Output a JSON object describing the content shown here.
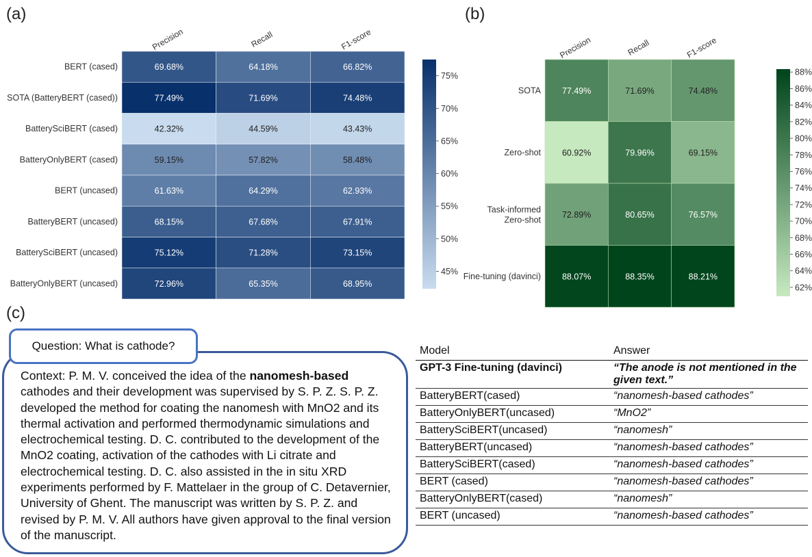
{
  "panels": {
    "a": "(a)",
    "b": "(b)",
    "c": "(c)"
  },
  "chart_data": [
    {
      "type": "heatmap",
      "columns": [
        "Precision",
        "Recall",
        "F1-score"
      ],
      "rows": [
        "BERT (cased)",
        "SOTA (BatteryBERT (cased))",
        "BatterySciBERT (cased)",
        "BatteryOnlyBERT (cased)",
        "BERT (uncased)",
        "BatteryBERT (uncased)",
        "BatterySciBERT (uncased)",
        "BatteryOnlyBERT (uncased)"
      ],
      "values": [
        [
          69.68,
          64.18,
          66.82
        ],
        [
          77.49,
          71.69,
          74.48
        ],
        [
          42.32,
          44.59,
          43.43
        ],
        [
          59.15,
          57.82,
          58.48
        ],
        [
          61.63,
          64.29,
          62.93
        ],
        [
          68.15,
          67.68,
          67.91
        ],
        [
          75.12,
          71.28,
          73.15
        ],
        [
          72.96,
          65.35,
          68.95
        ]
      ],
      "labels": [
        [
          "69.68%",
          "64.18%",
          "66.82%"
        ],
        [
          "77.49%",
          "71.69%",
          "74.48%"
        ],
        [
          "42.32%",
          "44.59%",
          "43.43%"
        ],
        [
          "59.15%",
          "57.82%",
          "58.48%"
        ],
        [
          "61.63%",
          "64.29%",
          "62.93%"
        ],
        [
          "68.15%",
          "67.68%",
          "67.91%"
        ],
        [
          "75.12%",
          "71.28%",
          "73.15%"
        ],
        [
          "72.96%",
          "65.35%",
          "68.95%"
        ]
      ],
      "colormap": "Blues",
      "color_range": [
        42.32,
        77.49
      ],
      "colorbar_ticks": [
        "75%",
        "70%",
        "65%",
        "60%",
        "55%",
        "50%",
        "45%"
      ],
      "colorbar_values": [
        75,
        70,
        65,
        60,
        55,
        50,
        45
      ],
      "color_low": "#c9dcef",
      "color_high": "#08306b"
    },
    {
      "type": "heatmap",
      "columns": [
        "Precision",
        "Recall",
        "F1-score"
      ],
      "rows": [
        "SOTA",
        "Zero-shot",
        "Task-informed\nZero-shot",
        "Fine-tuning (davinci)"
      ],
      "values": [
        [
          77.49,
          71.69,
          74.48
        ],
        [
          60.92,
          79.96,
          69.15
        ],
        [
          72.89,
          80.65,
          76.57
        ],
        [
          88.07,
          88.35,
          88.21
        ]
      ],
      "labels": [
        [
          "77.49%",
          "71.69%",
          "74.48%"
        ],
        [
          "60.92%",
          "79.96%",
          "69.15%"
        ],
        [
          "72.89%",
          "80.65%",
          "76.57%"
        ],
        [
          "88.07%",
          "88.35%",
          "88.21%"
        ]
      ],
      "colormap": "Greens",
      "color_range": [
        60.92,
        88.35
      ],
      "colorbar_ticks": [
        "88%",
        "86%",
        "84%",
        "82%",
        "80%",
        "78%",
        "76%",
        "74%",
        "72%",
        "70%",
        "68%",
        "66%",
        "64%",
        "62%"
      ],
      "colorbar_values": [
        88,
        86,
        84,
        82,
        80,
        78,
        76,
        74,
        72,
        70,
        68,
        66,
        64,
        62
      ],
      "color_low": "#c7e9c0",
      "color_high": "#00441b"
    }
  ],
  "question": "Question: What is cathode?",
  "context": {
    "prefix": "Context: P. M. V. conceived the idea of the ",
    "bold": "nanomesh-based",
    "suffix": " cathodes and their development was supervised by S. P. Z. S. P. Z. developed the method for coating the nanomesh with MnO2 and its thermal activation and performed thermodynamic simulations and electrochemical testing. D. C. contributed to the development of the MnO2 coating, activation of the cathodes with Li citrate and electrochemical testing. D. C. also assisted in the in situ XRD experiments performed by F. Mattelaer in the group of C. Detavernier, University of Ghent. The manuscript was written by S. P. Z. and revised by P. M. V. All authors have given approval to the final version of the manuscript."
  },
  "qa_table": {
    "headers": [
      "Model",
      "Answer"
    ],
    "rows": [
      {
        "model": "GPT-3 Fine-tuning (davinci)",
        "answer": "“The anode is not mentioned in the given text.”",
        "bold": true
      },
      {
        "model": "BatteryBERT(cased)",
        "answer": "“nanomesh-based cathodes”"
      },
      {
        "model": "BatteryOnlyBERT(uncased)",
        "answer": "“MnO2”"
      },
      {
        "model": "BatterySciBERT(uncased)",
        "answer": "“nanomesh”"
      },
      {
        "model": "BatteryBERT(uncased)",
        "answer": "“nanomesh-based cathodes”"
      },
      {
        "model": "BatterySciBERT(cased)",
        "answer": "“nanomesh-based cathodes”"
      },
      {
        "model": "BERT (cased)",
        "answer": "“nanomesh-based cathodes”"
      },
      {
        "model": "BatteryOnlyBERT(cased)",
        "answer": "“nanomesh”"
      },
      {
        "model": "BERT (uncased)",
        "answer": "“nanomesh-based cathodes”"
      }
    ]
  }
}
